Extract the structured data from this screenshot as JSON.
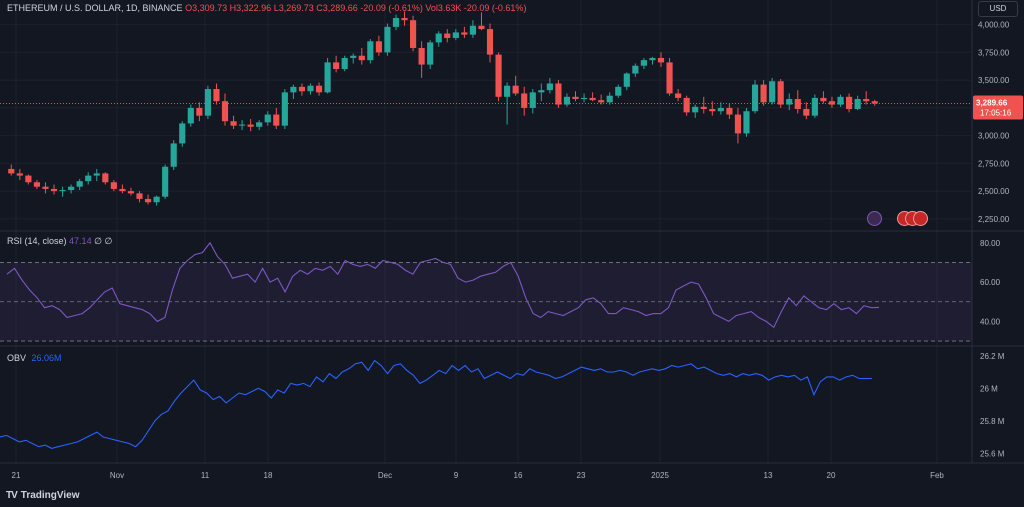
{
  "header": {
    "symbol": "ETHEREUM / U.S. DOLLAR, 1D, BINANCE",
    "open": "O3,309.73",
    "high": "H3,322.96",
    "low": "L3,269.73",
    "close": "C3,289.66",
    "change": "-20.09 (-0.61%)",
    "volume": "Vol3.63K",
    "volume_change": "-20.09 (-0.61%)"
  },
  "currency_button": "USD",
  "brand": "TradingView",
  "price_axis": {
    "ticks": [
      "4,000.00",
      "3,750.00",
      "3,500.00",
      "3,250.00",
      "3,000.00",
      "2,750.00",
      "2,500.00",
      "2,250.00"
    ],
    "last_price": "3,289.66",
    "countdown": "17:05:16"
  },
  "rsi": {
    "label": "RSI (14, close)",
    "value": "47.14",
    "extra1": "∅",
    "extra2": "∅",
    "ticks": [
      "80.00",
      "60.00",
      "40.00"
    ]
  },
  "obv": {
    "label": "OBV",
    "value": "26.06M",
    "ticks": [
      "26.2 M",
      "26 M",
      "25.8 M",
      "25.6 M"
    ]
  },
  "time_axis": [
    "21",
    "Nov",
    "11",
    "18",
    "Dec",
    "9",
    "16",
    "23",
    "2025",
    "13",
    "20",
    "Feb"
  ],
  "colors": {
    "up": "#26a69a",
    "down": "#ef5350",
    "rsi": "#7e57c2",
    "obv": "#2962ff",
    "bg": "#131722"
  },
  "chart_data": [
    {
      "type": "candlestick",
      "title": "ETHEREUM / U.S. DOLLAR, 1D, BINANCE",
      "ylim": [
        2150,
        4150
      ],
      "ohlc": [
        [
          2700,
          2740,
          2640,
          2660
        ],
        [
          2660,
          2700,
          2600,
          2640
        ],
        [
          2640,
          2650,
          2560,
          2580
        ],
        [
          2580,
          2600,
          2520,
          2540
        ],
        [
          2540,
          2580,
          2480,
          2520
        ],
        [
          2520,
          2560,
          2470,
          2500
        ],
        [
          2500,
          2540,
          2450,
          2510
        ],
        [
          2510,
          2560,
          2480,
          2540
        ],
        [
          2540,
          2610,
          2510,
          2590
        ],
        [
          2590,
          2670,
          2560,
          2640
        ],
        [
          2640,
          2700,
          2590,
          2660
        ],
        [
          2660,
          2670,
          2560,
          2580
        ],
        [
          2580,
          2600,
          2500,
          2520
        ],
        [
          2520,
          2560,
          2480,
          2500
        ],
        [
          2500,
          2530,
          2460,
          2480
        ],
        [
          2480,
          2500,
          2400,
          2430
        ],
        [
          2430,
          2470,
          2380,
          2400
        ],
        [
          2400,
          2460,
          2370,
          2450
        ],
        [
          2450,
          2740,
          2430,
          2720
        ],
        [
          2720,
          2960,
          2690,
          2930
        ],
        [
          2930,
          3130,
          2900,
          3110
        ],
        [
          3110,
          3280,
          3080,
          3250
        ],
        [
          3250,
          3300,
          3130,
          3180
        ],
        [
          3180,
          3450,
          3150,
          3420
        ],
        [
          3420,
          3470,
          3280,
          3310
        ],
        [
          3310,
          3380,
          3090,
          3130
        ],
        [
          3130,
          3180,
          3060,
          3090
        ],
        [
          3090,
          3140,
          3050,
          3100
        ],
        [
          3100,
          3150,
          3040,
          3080
        ],
        [
          3080,
          3140,
          3050,
          3120
        ],
        [
          3120,
          3220,
          3090,
          3190
        ],
        [
          3190,
          3250,
          3060,
          3090
        ],
        [
          3090,
          3420,
          3060,
          3390
        ],
        [
          3390,
          3460,
          3330,
          3440
        ],
        [
          3440,
          3470,
          3360,
          3400
        ],
        [
          3400,
          3470,
          3370,
          3450
        ],
        [
          3450,
          3480,
          3360,
          3390
        ],
        [
          3390,
          3700,
          3380,
          3660
        ],
        [
          3660,
          3720,
          3570,
          3600
        ],
        [
          3600,
          3720,
          3580,
          3700
        ],
        [
          3700,
          3740,
          3650,
          3720
        ],
        [
          3720,
          3790,
          3640,
          3680
        ],
        [
          3680,
          3870,
          3650,
          3850
        ],
        [
          3850,
          3900,
          3720,
          3750
        ],
        [
          3750,
          4010,
          3720,
          3980
        ],
        [
          3980,
          4090,
          3950,
          4060
        ],
        [
          4060,
          4120,
          3990,
          4040
        ],
        [
          4040,
          4080,
          3760,
          3790
        ],
        [
          3790,
          3850,
          3520,
          3640
        ],
        [
          3640,
          3860,
          3600,
          3840
        ],
        [
          3840,
          3940,
          3800,
          3920
        ],
        [
          3920,
          3960,
          3840,
          3880
        ],
        [
          3880,
          3960,
          3860,
          3930
        ],
        [
          3930,
          3980,
          3880,
          3910
        ],
        [
          3910,
          4040,
          3880,
          3990
        ],
        [
          3990,
          4110,
          3950,
          3960
        ],
        [
          3960,
          4010,
          3660,
          3730
        ],
        [
          3730,
          3750,
          3310,
          3350
        ],
        [
          3350,
          3480,
          3100,
          3450
        ],
        [
          3450,
          3540,
          3360,
          3380
        ],
        [
          3380,
          3440,
          3180,
          3250
        ],
        [
          3250,
          3420,
          3200,
          3390
        ],
        [
          3390,
          3470,
          3310,
          3410
        ],
        [
          3410,
          3520,
          3380,
          3470
        ],
        [
          3470,
          3500,
          3250,
          3280
        ],
        [
          3280,
          3380,
          3260,
          3350
        ],
        [
          3350,
          3400,
          3310,
          3330
        ],
        [
          3330,
          3380,
          3300,
          3340
        ],
        [
          3340,
          3390,
          3310,
          3320
        ],
        [
          3320,
          3370,
          3280,
          3300
        ],
        [
          3300,
          3390,
          3280,
          3360
        ],
        [
          3360,
          3460,
          3340,
          3440
        ],
        [
          3440,
          3570,
          3410,
          3560
        ],
        [
          3560,
          3650,
          3530,
          3630
        ],
        [
          3630,
          3700,
          3600,
          3680
        ],
        [
          3680,
          3710,
          3640,
          3700
        ],
        [
          3700,
          3750,
          3620,
          3660
        ],
        [
          3660,
          3700,
          3360,
          3380
        ],
        [
          3380,
          3420,
          3310,
          3340
        ],
        [
          3340,
          3360,
          3180,
          3210
        ],
        [
          3210,
          3280,
          3160,
          3260
        ],
        [
          3260,
          3350,
          3200,
          3240
        ],
        [
          3240,
          3310,
          3180,
          3220
        ],
        [
          3220,
          3300,
          3190,
          3250
        ],
        [
          3250,
          3290,
          3150,
          3190
        ],
        [
          3190,
          3250,
          2930,
          3020
        ],
        [
          3020,
          3250,
          2990,
          3220
        ],
        [
          3220,
          3500,
          3200,
          3460
        ],
        [
          3460,
          3500,
          3270,
          3300
        ],
        [
          3300,
          3520,
          3280,
          3490
        ],
        [
          3490,
          3510,
          3250,
          3280
        ],
        [
          3280,
          3380,
          3230,
          3330
        ],
        [
          3330,
          3410,
          3200,
          3240
        ],
        [
          3240,
          3300,
          3150,
          3180
        ],
        [
          3180,
          3370,
          3160,
          3340
        ],
        [
          3340,
          3400,
          3290,
          3310
        ],
        [
          3310,
          3350,
          3250,
          3280
        ],
        [
          3280,
          3370,
          3260,
          3350
        ],
        [
          3350,
          3380,
          3210,
          3240
        ],
        [
          3240,
          3360,
          3230,
          3330
        ],
        [
          3330,
          3400,
          3280,
          3310
        ],
        [
          3310,
          3322.96,
          3269.73,
          3289.66
        ]
      ]
    },
    {
      "type": "line",
      "title": "RSI (14, close)",
      "ylim": [
        28,
        86
      ],
      "bands": [
        30,
        50,
        70
      ],
      "values": [
        64,
        67,
        61,
        56,
        52,
        47,
        48,
        46,
        42,
        43,
        44,
        47,
        51,
        55,
        57,
        49,
        48,
        47,
        46,
        44,
        40,
        42,
        56,
        67,
        71,
        74,
        75,
        80,
        73,
        69,
        62,
        63,
        64,
        60,
        67,
        60,
        62,
        55,
        63,
        66,
        64,
        67,
        66,
        68,
        64,
        71,
        69,
        68,
        69,
        67,
        71,
        70,
        69,
        66,
        64,
        70,
        71,
        72,
        70,
        69,
        62,
        60,
        61,
        63,
        64,
        65,
        68,
        70,
        63,
        52,
        44,
        42,
        45,
        44,
        43,
        45,
        47,
        51,
        52,
        49,
        44,
        44,
        47,
        46,
        45,
        43,
        44,
        44,
        47,
        56,
        58,
        60,
        59,
        52,
        44,
        42,
        40,
        43,
        44,
        45,
        42,
        40,
        37,
        45,
        52,
        48,
        53,
        50,
        47,
        46,
        49,
        46,
        47,
        44,
        48,
        47,
        47.14
      ]
    },
    {
      "type": "line",
      "title": "OBV",
      "ylim": [
        25.54,
        26.26
      ],
      "values": [
        25.7,
        25.71,
        25.69,
        25.67,
        25.68,
        25.66,
        25.64,
        25.65,
        25.63,
        25.64,
        25.65,
        25.66,
        25.67,
        25.69,
        25.71,
        25.73,
        25.7,
        25.69,
        25.68,
        25.67,
        25.66,
        25.64,
        25.68,
        25.74,
        25.8,
        25.84,
        25.86,
        25.92,
        25.97,
        26.01,
        26.05,
        25.99,
        25.97,
        25.93,
        25.95,
        25.91,
        25.94,
        25.97,
        25.96,
        25.98,
        26.0,
        25.98,
        25.94,
        25.99,
        25.97,
        26.03,
        26.02,
        26.03,
        26.01,
        26.07,
        26.04,
        26.09,
        26.06,
        26.1,
        26.12,
        26.15,
        26.16,
        26.11,
        26.17,
        26.14,
        26.09,
        26.14,
        26.15,
        26.11,
        26.08,
        26.03,
        26.05,
        26.08,
        26.11,
        26.09,
        26.14,
        26.11,
        26.14,
        26.1,
        26.12,
        26.06,
        26.08,
        26.1,
        26.08,
        26.06,
        26.09,
        26.08,
        26.12,
        26.1,
        26.09,
        26.08,
        26.06,
        26.07,
        26.09,
        26.11,
        26.13,
        26.12,
        26.11,
        26.12,
        26.1,
        26.1,
        26.11,
        26.1,
        26.08,
        26.1,
        26.11,
        26.12,
        26.11,
        26.12,
        26.14,
        26.13,
        26.14,
        26.15,
        26.12,
        26.13,
        26.11,
        26.09,
        26.08,
        26.09,
        26.07,
        26.09,
        26.08,
        26.09,
        26.08,
        26.05,
        26.07,
        26.08,
        26.07,
        26.08,
        26.05,
        26.07,
        25.96,
        26.04,
        26.07,
        26.07,
        26.05,
        26.07,
        26.08,
        26.06,
        26.06,
        26.06
      ]
    }
  ]
}
